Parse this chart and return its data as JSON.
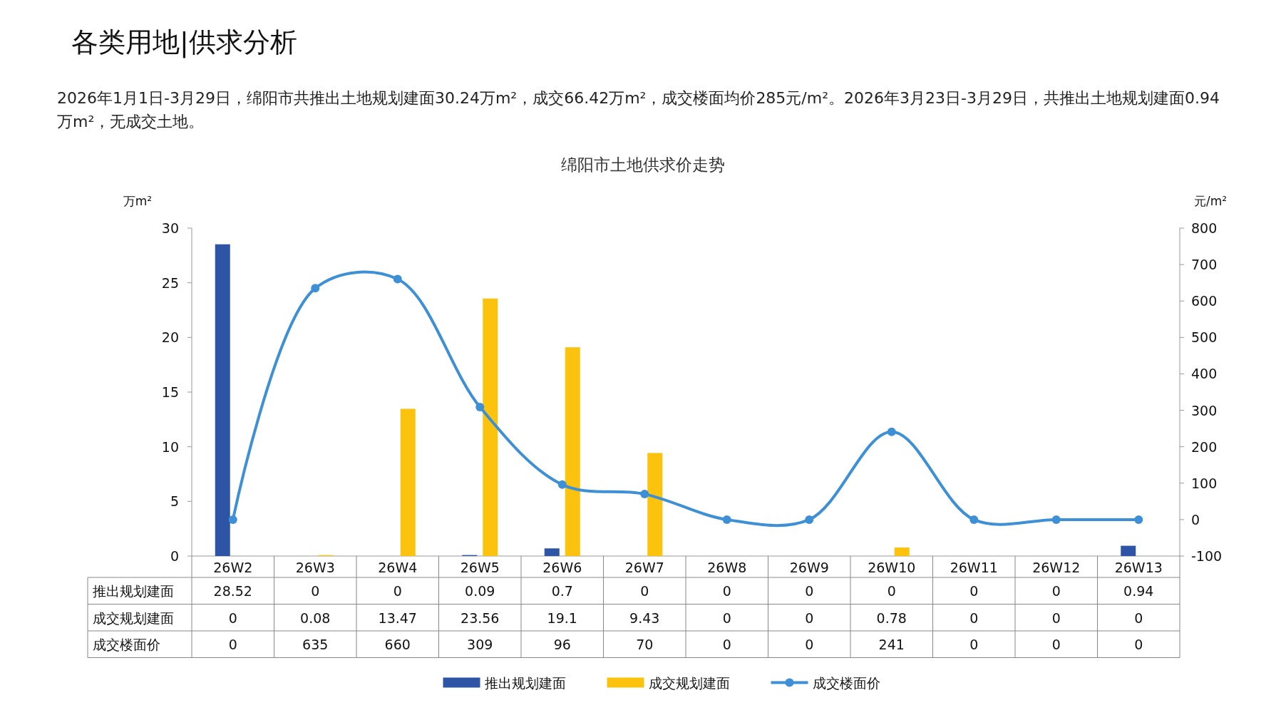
{
  "chart_data": {
    "type": "bar",
    "title": "绵阳市土地供求价走势",
    "subtitle": "2026年1月1日-3月29日，绵阳市共推出土地规划建面30.24万m²，成交66.42万m²，成交楼面均价285元/m²。2026年3月23日-3月29日，共推出土地规划建面0.94万m²，无成交土地。",
    "annotations": [
      "各类用地|供求分析"
    ],
    "ylabel": "万m²",
    "y2label": "元/m²",
    "categories": [
      "26W2",
      "26W3",
      "26W4",
      "26W5",
      "26W6",
      "26W7",
      "26W8",
      "26W9",
      "26W10",
      "26W11",
      "26W12",
      "26W13"
    ],
    "series": [
      {
        "name": "推出规划建面",
        "color": "#2e54a6",
        "values": [
          28.52,
          0,
          0,
          0.09,
          0.7,
          0,
          0,
          0,
          0,
          0,
          0,
          0.94
        ]
      },
      {
        "name": "成交规划建面",
        "color": "#fbc30d",
        "values": [
          0,
          0.08,
          13.47,
          23.56,
          19.1,
          9.43,
          0,
          0,
          0.78,
          0,
          0,
          0
        ]
      },
      {
        "name": "成交楼面价",
        "type": "line",
        "axis": "y2",
        "color": "#3d8fd6",
        "marker": "circle",
        "values": [
          0,
          635,
          660,
          309,
          96,
          70,
          0,
          0,
          241,
          0,
          0,
          0
        ]
      }
    ],
    "ylim": [
      0,
      30
    ],
    "yticks": [
      0,
      5,
      10,
      15,
      20,
      25,
      30
    ],
    "y2lim": [
      -100,
      800
    ],
    "y2ticks": [
      -100,
      0,
      100,
      200,
      300,
      400,
      500,
      600,
      700,
      800
    ],
    "data_labels": true,
    "legend": "bottom",
    "grid": false
  }
}
